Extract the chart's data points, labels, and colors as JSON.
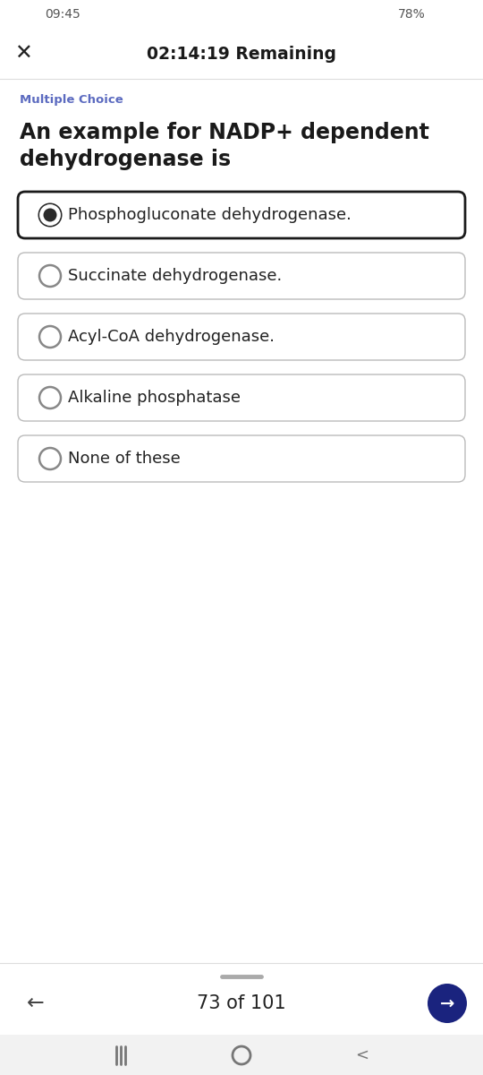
{
  "status_bar_left": "09:45",
  "status_bar_right": "78%",
  "timer": "02:14:19 Remaining",
  "question_type": "Multiple Choice",
  "question_line1": "An example for NADP+ dependent",
  "question_line2": "dehydrogenase is",
  "options": [
    "Phosphogluconate dehydrogenase.",
    "Succinate dehydrogenase.",
    "Acyl-CoA dehydrogenase.",
    "Alkaline phosphatase",
    "None of these"
  ],
  "selected_index": 0,
  "pagination": "73 of 101",
  "bg_color": "#ffffff",
  "status_bar_bg": "#ffffff",
  "nav_bar_bg": "#f2f2f2",
  "question_type_color": "#5c6bc0",
  "question_color": "#1a1a1a",
  "option_text_color": "#222222",
  "option_border_selected": "#1a1a1a",
  "option_border_normal": "#bbbbbb",
  "radio_fill_selected": "#2a2a2a",
  "radio_stroke_selected": "#2a2a2a",
  "nav_button_color": "#1a237e",
  "separator_color": "#dddddd",
  "status_text_color": "#555555",
  "timer_color": "#1a1a1a",
  "x_button_color": "#222222",
  "pagination_color": "#222222"
}
